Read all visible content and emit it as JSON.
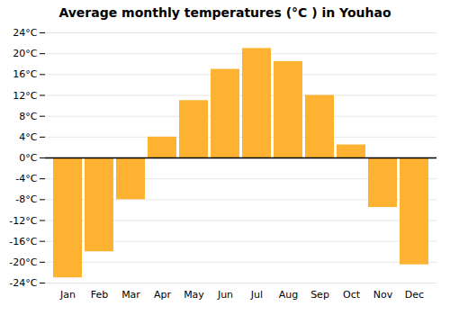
{
  "chart_data": {
    "type": "bar",
    "title": "Average monthly temperatures (°C ) in Youhao",
    "categories": [
      "Jan",
      "Feb",
      "Mar",
      "Apr",
      "May",
      "Jun",
      "Jul",
      "Aug",
      "Sep",
      "Oct",
      "Nov",
      "Dec"
    ],
    "values": [
      -23,
      -18,
      -8,
      4,
      11,
      17,
      21,
      18.5,
      12,
      2.5,
      -9.5,
      -20.5
    ],
    "color": "#FDB232",
    "ylim": [
      -24,
      24
    ],
    "yticks": [
      {
        "value": -24,
        "label": "-24°C"
      },
      {
        "value": -20,
        "label": "-20°C"
      },
      {
        "value": -16,
        "label": "-16°C"
      },
      {
        "value": -12,
        "label": "-12°C"
      },
      {
        "value": -8,
        "label": "-8°C"
      },
      {
        "value": -4,
        "label": "-4°C"
      },
      {
        "value": 0,
        "label": "0°C"
      },
      {
        "value": 4,
        "label": "4°C"
      },
      {
        "value": 8,
        "label": "8°C"
      },
      {
        "value": 12,
        "label": "12°C"
      },
      {
        "value": 16,
        "label": "16°C"
      },
      {
        "value": 20,
        "label": "20°C"
      },
      {
        "value": 24,
        "label": "24°C"
      }
    ],
    "grid": true
  }
}
